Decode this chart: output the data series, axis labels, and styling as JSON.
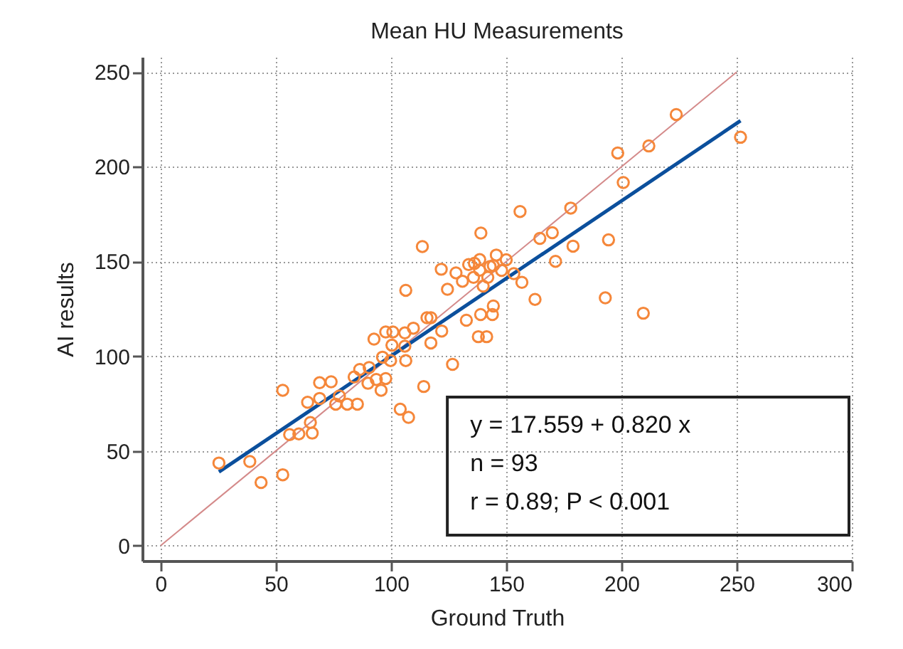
{
  "chart_data": {
    "type": "scatter",
    "title": "Mean HU Measurements",
    "xlabel": "Ground Truth",
    "ylabel": "AI results",
    "xlim": [
      -8,
      300
    ],
    "ylim": [
      -8,
      258
    ],
    "xticks": [
      0,
      50,
      100,
      150,
      200,
      250,
      300
    ],
    "yticks": [
      0,
      50,
      100,
      150,
      200,
      250
    ],
    "grid": true,
    "series": [
      {
        "color": "#f5873a",
        "marker": "circle",
        "x": [
          25.3,
          38.7,
          43.6,
          53,
          53,
          56,
          60,
          65.8,
          65,
          63.8,
          69,
          69,
          74,
          76,
          81,
          85.4,
          77.6,
          84,
          86.4,
          90.5,
          90,
          93.6,
          95.7,
          97.7,
          96.3,
          99.8,
          92.6,
          97.7,
          100.8,
          100.4,
          106,
          106,
          106.4,
          109.7,
          104,
          107.6,
          114.2,
          117.3,
          115.6,
          117.3,
          122,
          126.7,
          106.4,
          124.5,
          132.7,
          137.9,
          141.5,
          138.9,
          144,
          144.4,
          113.6,
          139,
          121.8,
          128.2,
          131,
          133.7,
          136.2,
          138.5,
          138.5,
          142,
          140,
          135.8,
          144.4,
          145.7,
          150,
          143,
          148,
          153.3,
          156.8,
          162.5,
          156,
          164.6,
          170,
          179,
          178,
          171.4,
          194.4,
          193,
          198.4,
          200.8,
          211.9,
          223.8,
          251.7,
          209.5
        ],
        "values": [
          43.6,
          44.4,
          33.3,
          37.4,
          82,
          58.6,
          59,
          59.4,
          65,
          75.7,
          77.7,
          86,
          86.5,
          74.7,
          74.7,
          74.7,
          79,
          89,
          93,
          94,
          85.7,
          87.7,
          82,
          88.2,
          99.5,
          97.7,
          109,
          112.8,
          112.8,
          105.8,
          112.3,
          105.3,
          97.7,
          114.8,
          72,
          67.7,
          84,
          120.3,
          120.3,
          107,
          113.3,
          95.7,
          134.8,
          135.3,
          119,
          110.3,
          110.3,
          122,
          122,
          126.5,
          157.9,
          165,
          145.9,
          144,
          139.6,
          148.4,
          149,
          151,
          145.4,
          141.6,
          137,
          141.6,
          147.8,
          153.4,
          150.9,
          147.4,
          145.3,
          143.6,
          139,
          130,
          176.4,
          162.2,
          165.2,
          158.1,
          178.2,
          150.1,
          161.4,
          130.8,
          207.3,
          191.7,
          211,
          227.6,
          215.6,
          122.7
        ]
      },
      {
        "type": "line",
        "color": "#d48a8a",
        "x": [
          0,
          250
        ],
        "values": [
          0,
          250
        ]
      },
      {
        "type": "line",
        "color": "#0b4f9c",
        "x": [
          25.3,
          251.7
        ],
        "values": [
          38.9,
          224.3
        ]
      }
    ],
    "annotations": [
      "y = 17.559  +  0.820  x",
      "n = 93",
      "r = 0.89; P < 0.001"
    ]
  }
}
